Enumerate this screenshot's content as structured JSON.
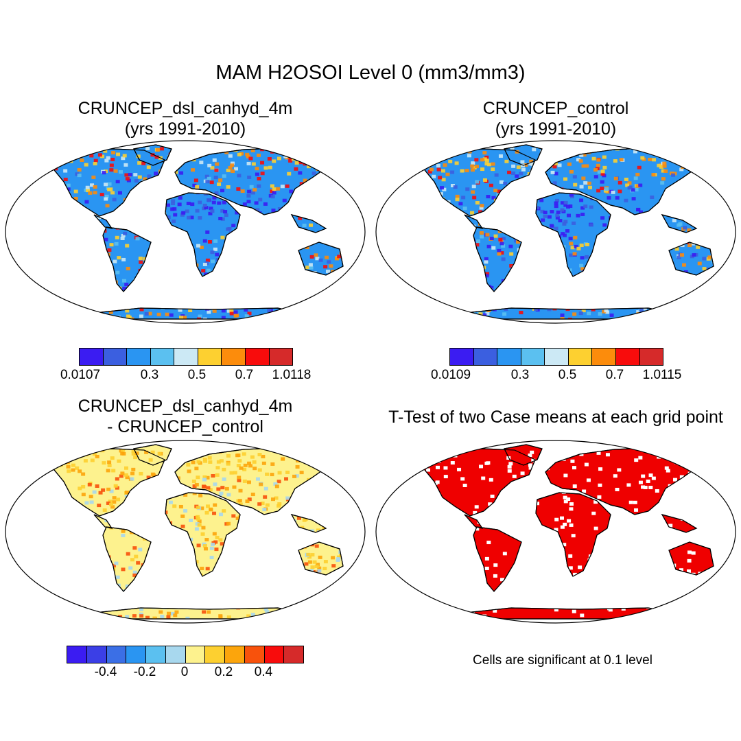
{
  "main_title": "MAM H2OSOI Level 0 (mm3/mm3)",
  "panels": [
    {
      "title_line1": "CRUNCEP_dsl_canhyd_4m",
      "title_line2": "(yrs 1991-2010)",
      "map_style": "field",
      "colorbar": {
        "colors": [
          "#3b1cf2",
          "#3b5fe0",
          "#2a95f2",
          "#5bc0f0",
          "#cce9f5",
          "#fdd030",
          "#fc8c0c",
          "#f80c0c",
          "#d62a2a"
        ],
        "ticks": [
          "0.0107",
          "0.3",
          "0.5",
          "0.7",
          "1.0118"
        ]
      }
    },
    {
      "title_line1": "CRUNCEP_control",
      "title_line2": "(yrs 1991-2010)",
      "map_style": "field",
      "colorbar": {
        "colors": [
          "#3b1cf2",
          "#3b5fe0",
          "#2a95f2",
          "#5bc0f0",
          "#cce9f5",
          "#fdd030",
          "#fc8c0c",
          "#f80c0c",
          "#d62a2a"
        ],
        "ticks": [
          "0.0109",
          "0.3",
          "0.5",
          "0.7",
          "1.0115"
        ]
      }
    },
    {
      "title_line1": "CRUNCEP_dsl_canhyd_4m",
      "title_line2": "- CRUNCEP_control",
      "map_style": "diff",
      "colorbar": {
        "colors": [
          "#3b1cf2",
          "#3b3fe6",
          "#3b6fe6",
          "#2a95f2",
          "#5bc0f0",
          "#a8d8ee",
          "#fdf28e",
          "#fdd030",
          "#fca50c",
          "#f8520c",
          "#f80c0c",
          "#d62a2a"
        ],
        "ticks": [
          "-0.4",
          "-0.2",
          "0",
          "0.2",
          "0.4"
        ]
      }
    },
    {
      "title_line1": "T-Test of two Case means at each grid point",
      "title_line2": "",
      "map_style": "ttest",
      "note": "Cells are significant at 0.1 level"
    }
  ],
  "legend_colors": {
    "ocean": "#ffffff",
    "significant": "#ef0000",
    "coast": "#000000"
  }
}
